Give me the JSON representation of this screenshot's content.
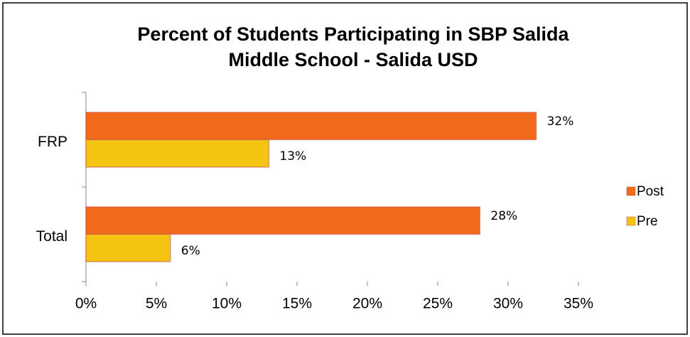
{
  "chart_data": {
    "type": "bar",
    "orientation": "horizontal",
    "title": [
      "Percent of Students Participating in SBP Salida",
      "Middle School  - Salida USD"
    ],
    "categories": [
      "FRP",
      "Total"
    ],
    "series": [
      {
        "name": "Post",
        "color": "#f26a1b",
        "values": [
          32,
          28
        ],
        "value_labels": [
          "32%",
          "28%"
        ]
      },
      {
        "name": "Pre",
        "color": "#f5c413",
        "values": [
          13,
          6
        ],
        "value_labels": [
          "13%",
          "6%"
        ]
      }
    ],
    "xlim": [
      0,
      35
    ],
    "xticks": [
      {
        "value": 0,
        "label": "0%"
      },
      {
        "value": 5,
        "label": "5%"
      },
      {
        "value": 10,
        "label": "10%"
      },
      {
        "value": 15,
        "label": "15%"
      },
      {
        "value": 20,
        "label": "20%"
      },
      {
        "value": 25,
        "label": "25%"
      },
      {
        "value": 30,
        "label": "30%"
      },
      {
        "value": 35,
        "label": "35%"
      }
    ],
    "legend": "right"
  }
}
